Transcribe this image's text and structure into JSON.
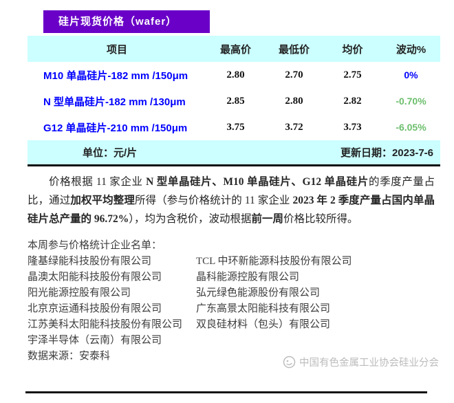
{
  "header": {
    "title": "硅片现货价格（wafer）"
  },
  "table": {
    "columns": [
      "项目",
      "最高价",
      "最低价",
      "均价",
      "波动%"
    ],
    "rows": [
      {
        "item": "M10 单晶硅片-182 mm /150μm",
        "high": "2.80",
        "low": "2.70",
        "avg": "2.75",
        "change": "0%",
        "change_color": "blue"
      },
      {
        "item": "N 型单晶硅片-182 mm /130μm",
        "high": "2.85",
        "low": "2.80",
        "avg": "2.82",
        "change": "-0.70%",
        "change_color": "green"
      },
      {
        "item": "G12 单晶硅片-210 mm /150μm",
        "high": "3.75",
        "low": "3.72",
        "avg": "3.73",
        "change": "-6.05%",
        "change_color": "green"
      }
    ],
    "unit_label": "单位：元/片",
    "update_label": "更新日期：2023-7-6"
  },
  "note": {
    "segments": [
      {
        "text": "价格根据 11 家企业 ",
        "bold": false
      },
      {
        "text": "N 型单晶硅片、M10 单晶硅片、G12 单晶硅片",
        "bold": true
      },
      {
        "text": "的季度产量占比，通过",
        "bold": false
      },
      {
        "text": "加权平均整理",
        "bold": true
      },
      {
        "text": "所得（参与价格统计的 11 家企业 ",
        "bold": false
      },
      {
        "text": "2023 年 2 季度产量占国内单晶硅片总产量的 96.72%",
        "bold": true
      },
      {
        "text": "），均为含税价，波动根据",
        "bold": false
      },
      {
        "text": "前一周",
        "bold": true
      },
      {
        "text": "价格比较所得。",
        "bold": false
      }
    ]
  },
  "companies": {
    "title": "本周参与价格统计企业名单：",
    "rows": [
      [
        "隆基绿能科技股份有限公司",
        "TCL 中环新能源科技股份有限公司"
      ],
      [
        "晶澳太阳能科技股份有限公司",
        "晶科能源控股有限公司"
      ],
      [
        "阳光能源控股有限公司",
        "弘元绿色能源股份有限公司"
      ],
      [
        "北京京运通科技股份有限公司",
        "广东高景太阳能科技有限公司"
      ],
      [
        "江苏美科太阳能科技股份有限公司",
        "双良硅材料（包头）有限公司"
      ],
      [
        "宇泽半导体（云南）有限公司",
        ""
      ]
    ]
  },
  "source": "数据来源：安泰科",
  "watermark": {
    "text": "中国有色金属工业协会硅业分会"
  },
  "colors": {
    "accent_purple": "#6A00C8",
    "row_cyan": "#CCFFFF",
    "item_blue": "#0000FF",
    "change_green": "#6CBE6C"
  }
}
